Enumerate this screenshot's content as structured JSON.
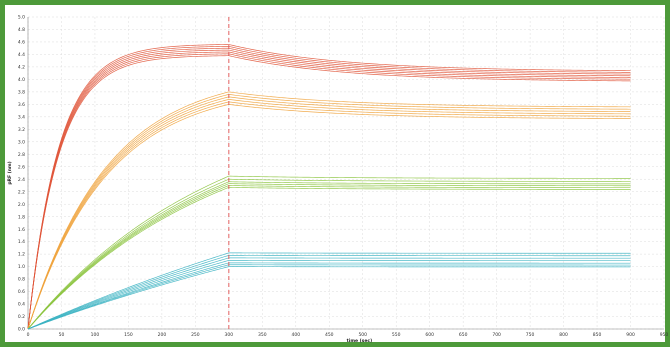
{
  "chart_data": {
    "type": "line",
    "title": "",
    "xlabel": "time (sec)",
    "ylabel": "pRF (nm)",
    "xlim": [
      0,
      950
    ],
    "ylim": [
      0,
      5.0
    ],
    "xticks": [
      0,
      50,
      100,
      150,
      200,
      250,
      300,
      350,
      400,
      450,
      500,
      550,
      600,
      650,
      700,
      750,
      800,
      850,
      900,
      950
    ],
    "yticks": [
      0.0,
      0.2,
      0.4,
      0.6,
      0.8,
      1.0,
      1.2,
      1.4,
      1.6,
      1.8,
      2.0,
      2.2,
      2.4,
      2.6,
      2.8,
      3.0,
      3.2,
      3.4,
      3.6,
      3.8,
      4.0,
      4.2,
      4.4,
      4.6,
      4.8,
      5.0
    ],
    "grid": true,
    "vline_x": 300,
    "curve_end_x": 900,
    "groups": [
      {
        "color": "#e0553a",
        "peaks": [
          4.56,
          4.53,
          4.5,
          4.47,
          4.44,
          4.41,
          4.38
        ],
        "kon": 0.022,
        "final_fraction": 0.905
      },
      {
        "color": "#f0a33c",
        "peaks": [
          3.8,
          3.76,
          3.72,
          3.68,
          3.64,
          3.6
        ],
        "kon": 0.0085,
        "final_fraction": 0.935
      },
      {
        "color": "#8cc43f",
        "peaks": [
          2.45,
          2.4,
          2.36,
          2.33,
          2.3,
          2.27
        ],
        "kon": 0.0035,
        "final_fraction": 0.985
      },
      {
        "color": "#3bb3c2",
        "peaks": [
          1.22,
          1.18,
          1.14,
          1.1,
          1.06,
          1.03,
          1.0
        ],
        "kon": 0.0012,
        "final_fraction": 0.995
      }
    ]
  }
}
